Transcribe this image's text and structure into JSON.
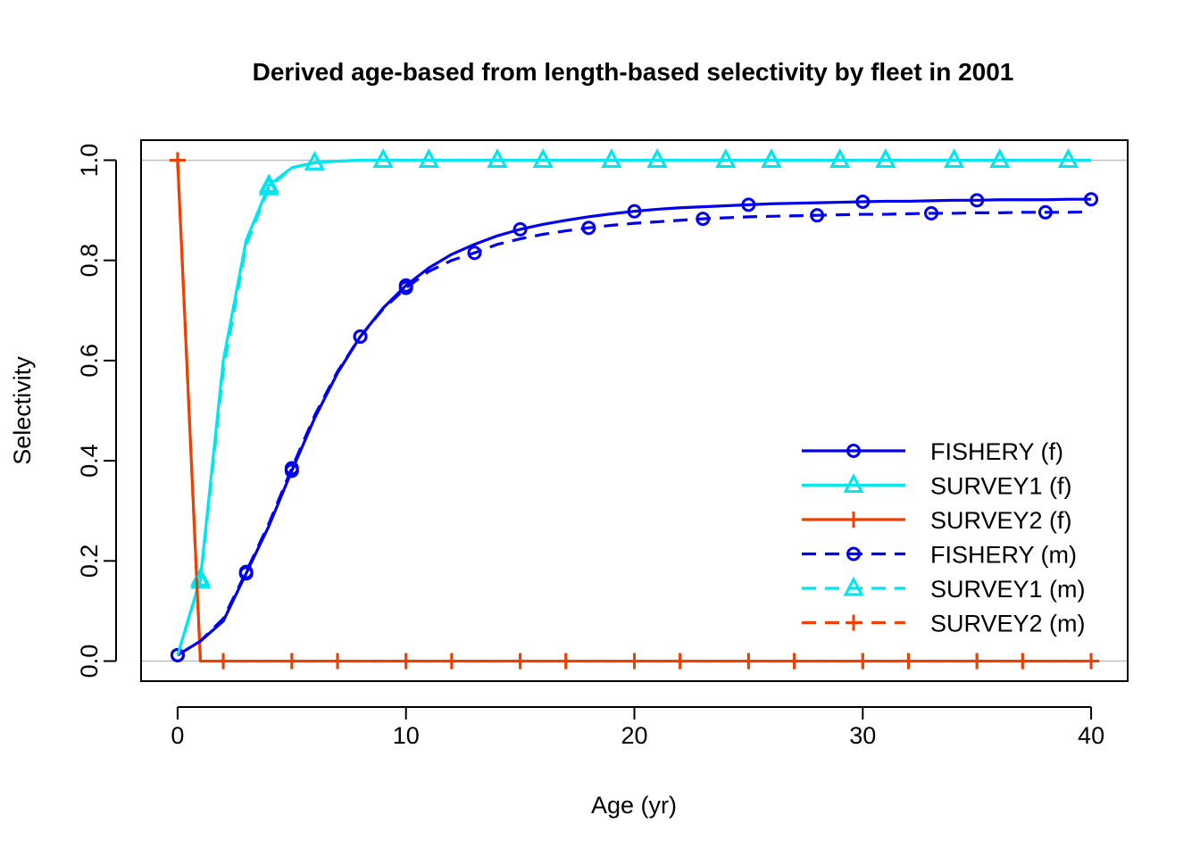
{
  "chart_data": {
    "type": "line",
    "title": "Derived age-based from length-based selectivity by fleet in 2001",
    "xlabel": "Age (yr)",
    "ylabel": "Selectivity",
    "xlim": [
      -1.6,
      41.6
    ],
    "ylim": [
      -0.04,
      1.04
    ],
    "xticks": [
      "0",
      "10",
      "20",
      "30",
      "40"
    ],
    "yticks": [
      "0.0",
      "0.2",
      "0.4",
      "0.6",
      "0.8",
      "1.0"
    ],
    "reference_lines_y": [
      0,
      1
    ],
    "legend_position": "right",
    "series": [
      {
        "name": "FISHERY (f)",
        "color": "#0000EE",
        "dash": "solid",
        "marker": "circle",
        "x": [
          0,
          1,
          2,
          3,
          4,
          5,
          6,
          7,
          8,
          9,
          10,
          11,
          12,
          13,
          14,
          15,
          16,
          17,
          18,
          19,
          20,
          21,
          22,
          23,
          24,
          25,
          26,
          27,
          28,
          29,
          30,
          31,
          32,
          33,
          34,
          35,
          36,
          37,
          38,
          39,
          40
        ],
        "y": [
          0.012,
          0.04,
          0.08,
          0.175,
          0.27,
          0.38,
          0.485,
          0.575,
          0.648,
          0.705,
          0.75,
          0.785,
          0.812,
          0.832,
          0.849,
          0.862,
          0.872,
          0.88,
          0.887,
          0.893,
          0.898,
          0.902,
          0.905,
          0.907,
          0.909,
          0.911,
          0.913,
          0.914,
          0.915,
          0.916,
          0.917,
          0.918,
          0.918,
          0.919,
          0.92,
          0.92,
          0.921,
          0.921,
          0.921,
          0.922,
          0.922
        ],
        "marker_x": [
          0,
          3,
          5,
          8,
          10,
          15,
          20,
          25,
          30,
          35,
          40
        ]
      },
      {
        "name": "SURVEY1 (f)",
        "color": "#00E5EE",
        "dash": "solid",
        "marker": "triangle",
        "x": [
          0,
          1,
          2,
          3,
          4,
          5,
          6,
          7,
          8,
          9,
          10,
          11,
          12,
          13,
          14,
          15,
          16,
          17,
          18,
          19,
          20,
          21,
          22,
          23,
          24,
          25,
          26,
          27,
          28,
          29,
          30,
          31,
          32,
          33,
          34,
          35,
          36,
          37,
          38,
          39,
          40
        ],
        "y": [
          0.012,
          0.165,
          0.6,
          0.84,
          0.95,
          0.985,
          0.995,
          0.998,
          1,
          1,
          1,
          1,
          1,
          1,
          1,
          1,
          1,
          1,
          1,
          1,
          1,
          1,
          1,
          1,
          1,
          1,
          1,
          1,
          1,
          1,
          1,
          1,
          1,
          1,
          1,
          1,
          1,
          1,
          1,
          1,
          1
        ],
        "marker_x": [
          1,
          4,
          6,
          9,
          11,
          14,
          16,
          19,
          21,
          24,
          26,
          29,
          31,
          34,
          36,
          39
        ]
      },
      {
        "name": "SURVEY2 (f)",
        "color": "#EE4000",
        "dash": "solid",
        "marker": "plus",
        "x": [
          0,
          1,
          2,
          3,
          4,
          5,
          6,
          7,
          8,
          9,
          10,
          11,
          12,
          13,
          14,
          15,
          16,
          17,
          18,
          19,
          20,
          21,
          22,
          23,
          24,
          25,
          26,
          27,
          28,
          29,
          30,
          31,
          32,
          33,
          34,
          35,
          36,
          37,
          38,
          39,
          40
        ],
        "y": [
          1,
          0,
          0,
          0,
          0,
          0,
          0,
          0,
          0,
          0,
          0,
          0,
          0,
          0,
          0,
          0,
          0,
          0,
          0,
          0,
          0,
          0,
          0,
          0,
          0,
          0,
          0,
          0,
          0,
          0,
          0,
          0,
          0,
          0,
          0,
          0,
          0,
          0,
          0,
          0,
          0
        ],
        "marker_x": [
          0,
          2,
          5,
          7,
          10,
          12,
          15,
          17,
          20,
          22,
          25,
          27,
          30,
          32,
          35,
          37,
          40
        ]
      },
      {
        "name": "FISHERY (m)",
        "color": "#0000EE",
        "dash": "dashed",
        "marker": "circle",
        "x": [
          0,
          1,
          2,
          3,
          4,
          5,
          6,
          7,
          8,
          9,
          10,
          11,
          12,
          13,
          14,
          15,
          16,
          17,
          18,
          19,
          20,
          21,
          22,
          23,
          24,
          25,
          26,
          27,
          28,
          29,
          30,
          31,
          32,
          33,
          34,
          35,
          36,
          37,
          38,
          39,
          40
        ],
        "y": [
          0.012,
          0.04,
          0.085,
          0.178,
          0.275,
          0.385,
          0.49,
          0.578,
          0.648,
          0.703,
          0.745,
          0.778,
          0.8,
          0.815,
          0.832,
          0.843,
          0.852,
          0.859,
          0.865,
          0.87,
          0.874,
          0.877,
          0.88,
          0.883,
          0.885,
          0.887,
          0.888,
          0.889,
          0.89,
          0.891,
          0.892,
          0.892,
          0.893,
          0.894,
          0.894,
          0.895,
          0.895,
          0.896,
          0.896,
          0.896,
          0.897
        ],
        "marker_x": [
          0,
          3,
          5,
          8,
          10,
          13,
          18,
          23,
          28,
          33,
          38
        ]
      },
      {
        "name": "SURVEY1 (m)",
        "color": "#00E5EE",
        "dash": "dashed",
        "marker": "triangle",
        "x": [
          0,
          1,
          2,
          3,
          4,
          5,
          6,
          7,
          8,
          9,
          10,
          11,
          12,
          13,
          14,
          15,
          16,
          17,
          18,
          19,
          20,
          21,
          22,
          23,
          24,
          25,
          26,
          27,
          28,
          29,
          30,
          31,
          32,
          33,
          34,
          35,
          36,
          37,
          38,
          39,
          40
        ],
        "y": [
          0.012,
          0.16,
          0.58,
          0.83,
          0.945,
          0.985,
          0.995,
          0.998,
          1,
          1,
          1,
          1,
          1,
          1,
          1,
          1,
          1,
          1,
          1,
          1,
          1,
          1,
          1,
          1,
          1,
          1,
          1,
          1,
          1,
          1,
          1,
          1,
          1,
          1,
          1,
          1,
          1,
          1,
          1,
          1,
          1
        ],
        "marker_x": [
          1,
          4,
          6,
          9,
          11,
          14,
          16,
          19,
          21,
          24,
          26,
          29,
          31,
          34,
          36,
          39
        ]
      },
      {
        "name": "SURVEY2 (m)",
        "color": "#EE4000",
        "dash": "dashed",
        "marker": "plus",
        "x": [
          0,
          1,
          2,
          3,
          4,
          5,
          6,
          7,
          8,
          9,
          10,
          11,
          12,
          13,
          14,
          15,
          16,
          17,
          18,
          19,
          20,
          21,
          22,
          23,
          24,
          25,
          26,
          27,
          28,
          29,
          30,
          31,
          32,
          33,
          34,
          35,
          36,
          37,
          38,
          39,
          40
        ],
        "y": [
          1,
          0,
          0,
          0,
          0,
          0,
          0,
          0,
          0,
          0,
          0,
          0,
          0,
          0,
          0,
          0,
          0,
          0,
          0,
          0,
          0,
          0,
          0,
          0,
          0,
          0,
          0,
          0,
          0,
          0,
          0,
          0,
          0,
          0,
          0,
          0,
          0,
          0,
          0,
          0,
          0
        ],
        "marker_x": [
          0,
          2,
          5,
          7,
          10,
          12,
          15,
          17,
          20,
          22,
          25,
          27,
          30,
          32,
          35,
          37,
          40
        ]
      }
    ]
  }
}
